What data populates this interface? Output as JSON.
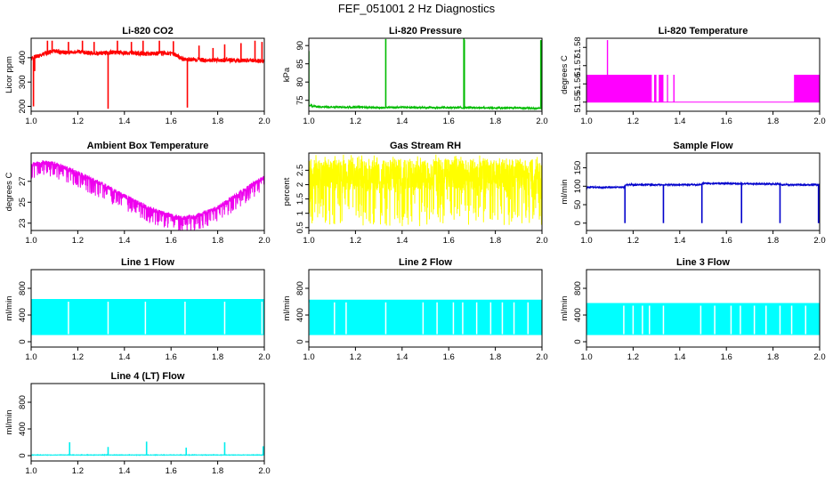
{
  "main_title": "FEF_051001  2 Hz Diagnostics",
  "chart_data": [
    {
      "id": "co2",
      "type": "line",
      "title": "Li-820 CO2",
      "ylabel": "Licor ppm",
      "xlim": [
        1.0,
        2.0
      ],
      "ylim": [
        180,
        480
      ],
      "yticks": [
        200,
        300,
        400
      ],
      "xticks": [
        1.0,
        1.2,
        1.4,
        1.6,
        1.8,
        2.0
      ],
      "color": "#ff0000",
      "x": [
        1.0,
        1.02,
        1.05,
        1.08,
        1.1,
        1.15,
        1.2,
        1.25,
        1.3,
        1.35,
        1.4,
        1.45,
        1.5,
        1.55,
        1.6,
        1.62,
        1.65,
        1.7,
        1.75,
        1.8,
        1.85,
        1.9,
        1.95,
        2.0
      ],
      "y": [
        395,
        405,
        412,
        425,
        428,
        420,
        425,
        420,
        418,
        422,
        420,
        418,
        415,
        420,
        418,
        410,
        395,
        392,
        390,
        390,
        390,
        388,
        390,
        385
      ],
      "noise": 18,
      "seed": 1,
      "spikes": [
        {
          "x": 1.01,
          "y": 200
        },
        {
          "x": 1.015,
          "y": 345
        },
        {
          "x": 1.07,
          "y": 470
        },
        {
          "x": 1.09,
          "y": 470
        },
        {
          "x": 1.16,
          "y": 465
        },
        {
          "x": 1.22,
          "y": 470
        },
        {
          "x": 1.27,
          "y": 465
        },
        {
          "x": 1.33,
          "y": 190
        },
        {
          "x": 1.37,
          "y": 470
        },
        {
          "x": 1.43,
          "y": 465
        },
        {
          "x": 1.48,
          "y": 470
        },
        {
          "x": 1.55,
          "y": 470
        },
        {
          "x": 1.61,
          "y": 468
        },
        {
          "x": 1.67,
          "y": 195
        },
        {
          "x": 1.72,
          "y": 450
        },
        {
          "x": 1.78,
          "y": 440
        },
        {
          "x": 1.83,
          "y": 455
        },
        {
          "x": 1.9,
          "y": 460
        },
        {
          "x": 1.96,
          "y": 470
        },
        {
          "x": 1.99,
          "y": 465
        }
      ]
    },
    {
      "id": "pressure",
      "type": "line",
      "title": "Li-820 Pressure",
      "ylabel": "kPa",
      "xlim": [
        1.0,
        2.0
      ],
      "ylim": [
        72,
        92
      ],
      "yticks": [
        75,
        80,
        85,
        90
      ],
      "xticks": [
        1.0,
        1.2,
        1.4,
        1.6,
        1.8,
        2.0
      ],
      "color": "#00bb00",
      "x": [
        1.0,
        1.05,
        1.1,
        1.2,
        1.3,
        1.4,
        1.5,
        1.6,
        1.7,
        1.8,
        1.9,
        2.0
      ],
      "y": [
        73.6,
        73.2,
        73.1,
        73.1,
        73.0,
        73.1,
        73.0,
        73.0,
        73.0,
        72.9,
        72.9,
        72.8
      ],
      "noise": 0.5,
      "seed": 2,
      "spikes": [
        {
          "x": 1.0,
          "y": 88.5
        },
        {
          "x": 1.33,
          "y": 91.8
        },
        {
          "x": 1.665,
          "y": 92.0
        },
        {
          "x": 1.667,
          "y": 91.6
        },
        {
          "x": 1.995,
          "y": 91.5
        }
      ]
    },
    {
      "id": "temperature",
      "type": "step",
      "title": "Li-820 Temperature",
      "ylabel": "degrees C",
      "xlim": [
        1.0,
        2.0
      ],
      "ylim": [
        51.545,
        51.585
      ],
      "yticks": [
        51.55,
        51.56,
        51.57,
        51.58
      ],
      "xticks": [
        1.0,
        1.2,
        1.4,
        1.6,
        1.8,
        2.0
      ],
      "color": "#ff00ff",
      "low": 51.55,
      "high": 51.565,
      "filled": [
        [
          1.0,
          1.28
        ],
        [
          1.29,
          1.3
        ],
        [
          1.31,
          1.33
        ],
        [
          1.345,
          1.35
        ],
        [
          1.89,
          2.0
        ]
      ],
      "spikes": [
        {
          "x": 1.09,
          "y": 51.584
        },
        {
          "x": 1.375,
          "y": 51.565
        }
      ]
    },
    {
      "id": "ambient",
      "type": "line",
      "title": "Ambient Box Temperature",
      "ylabel": "degrees C",
      "xlim": [
        1.0,
        2.0
      ],
      "ylim": [
        22.3,
        29.7
      ],
      "yticks": [
        23,
        25,
        27
      ],
      "xticks": [
        1.0,
        1.2,
        1.4,
        1.6,
        1.8,
        2.0
      ],
      "color": "#ee00ee",
      "x": [
        1.0,
        1.05,
        1.1,
        1.2,
        1.3,
        1.4,
        1.5,
        1.6,
        1.65,
        1.7,
        1.8,
        1.9,
        2.0
      ],
      "y": [
        28.8,
        29.0,
        28.9,
        28.0,
        27.0,
        25.8,
        24.7,
        23.9,
        23.7,
        23.8,
        24.7,
        26.2,
        27.6
      ],
      "noise": 0.9,
      "seed": 3,
      "spikes": []
    },
    {
      "id": "rh",
      "type": "line",
      "title": "Gas Stream RH",
      "ylabel": "percent",
      "xlim": [
        1.0,
        2.0
      ],
      "ylim": [
        0.4,
        3.1
      ],
      "yticks": [
        0.5,
        1.0,
        1.5,
        2.0,
        2.5
      ],
      "xticks": [
        1.0,
        1.2,
        1.4,
        1.6,
        1.8,
        2.0
      ],
      "color": "#ffff00",
      "x": [
        1.0,
        2.0
      ],
      "y": [
        2.0,
        2.0
      ],
      "noise": 1.3,
      "seed": 4,
      "spikes": []
    },
    {
      "id": "sample",
      "type": "line",
      "title": "Sample Flow",
      "ylabel": "ml/min",
      "xlim": [
        1.0,
        2.0
      ],
      "ylim": [
        -20,
        190
      ],
      "yticks": [
        0,
        50,
        100,
        150
      ],
      "xticks": [
        1.0,
        1.2,
        1.4,
        1.6,
        1.8,
        2.0
      ],
      "color": "#0000cc",
      "x": [
        1.0,
        1.16,
        1.17,
        1.49,
        1.5,
        1.83,
        1.84,
        2.0
      ],
      "y": [
        97,
        97,
        104,
        104,
        108,
        106,
        104,
        104
      ],
      "noise": 4,
      "seed": 5,
      "spikes": [
        {
          "x": 1.0,
          "y": 90
        },
        {
          "x": 1.165,
          "y": 0
        },
        {
          "x": 1.33,
          "y": 0
        },
        {
          "x": 1.495,
          "y": 0
        },
        {
          "x": 1.665,
          "y": 0
        },
        {
          "x": 1.83,
          "y": 0
        },
        {
          "x": 1.995,
          "y": 0
        }
      ]
    },
    {
      "id": "line1",
      "type": "band",
      "title": "Line 1 Flow",
      "ylabel": "ml/min",
      "xlim": [
        1.0,
        2.0
      ],
      "ylim": [
        -80,
        1080
      ],
      "yticks": [
        0,
        400,
        800
      ],
      "xticks": [
        1.0,
        1.2,
        1.4,
        1.6,
        1.8,
        2.0
      ],
      "color": "#00ffff",
      "low": 100,
      "high": 640,
      "gaps": [
        1.16,
        1.33,
        1.49,
        1.66,
        1.83,
        1.99
      ]
    },
    {
      "id": "line2",
      "type": "band",
      "title": "Line 2 Flow",
      "ylabel": "ml/min",
      "xlim": [
        1.0,
        2.0
      ],
      "ylim": [
        -80,
        1080
      ],
      "yticks": [
        0,
        400,
        800
      ],
      "xticks": [
        1.0,
        1.2,
        1.4,
        1.6,
        1.8,
        2.0
      ],
      "color": "#00ffff",
      "low": 100,
      "high": 630,
      "gaps": [
        1.0,
        1.11,
        1.16,
        1.33,
        1.49,
        1.55,
        1.62,
        1.66,
        1.72,
        1.78,
        1.83,
        1.88,
        1.94
      ]
    },
    {
      "id": "line3",
      "type": "band",
      "title": "Line 3 Flow",
      "ylabel": "ml/min",
      "xlim": [
        1.0,
        2.0
      ],
      "ylim": [
        -80,
        1080
      ],
      "yticks": [
        0,
        400,
        800
      ],
      "xticks": [
        1.0,
        1.2,
        1.4,
        1.6,
        1.8,
        2.0
      ],
      "color": "#00ffff",
      "low": 100,
      "high": 580,
      "gaps": [
        1.16,
        1.2,
        1.24,
        1.27,
        1.33,
        1.49,
        1.55,
        1.62,
        1.66,
        1.72,
        1.77,
        1.83,
        1.88,
        1.94
      ]
    },
    {
      "id": "line4",
      "type": "line",
      "title": "Line 4 (LT) Flow",
      "ylabel": "ml/min",
      "xlim": [
        1.0,
        2.0
      ],
      "ylim": [
        -80,
        1080
      ],
      "yticks": [
        0,
        400,
        800
      ],
      "xticks": [
        1.0,
        1.2,
        1.4,
        1.6,
        1.8,
        2.0
      ],
      "color": "#00eeee",
      "x": [
        1.0,
        2.0
      ],
      "y": [
        10,
        10
      ],
      "noise": 6,
      "seed": 6,
      "spikes": [
        {
          "x": 1.165,
          "y": 200
        },
        {
          "x": 1.33,
          "y": 130
        },
        {
          "x": 1.495,
          "y": 210
        },
        {
          "x": 1.665,
          "y": 120
        },
        {
          "x": 1.83,
          "y": 200
        },
        {
          "x": 1.995,
          "y": 140
        }
      ]
    }
  ]
}
